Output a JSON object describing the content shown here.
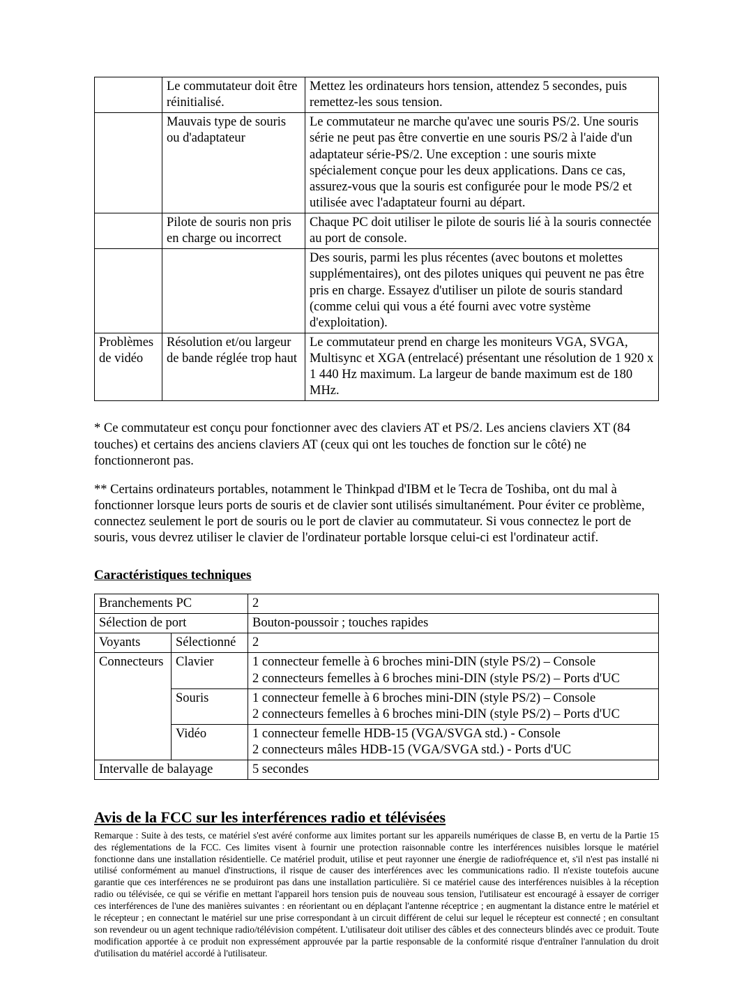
{
  "table1": {
    "rows": [
      {
        "c1": "",
        "c2": "Le commutateur doit être réinitialisé.",
        "c3": "Mettez les ordinateurs hors tension, attendez 5 secondes, puis remettez-les sous tension."
      },
      {
        "c1": "",
        "c2": "Mauvais type de souris ou d'adaptateur",
        "c3": "Le commutateur ne marche qu'avec une souris PS/2. Une souris série ne peut pas être convertie en une souris PS/2 à l'aide d'un adaptateur série-PS/2. Une exception : une souris mixte spécialement conçue pour les deux applications. Dans ce cas, assurez-vous que la souris est configurée pour le mode PS/2 et utilisée avec l'adaptateur fourni au départ."
      },
      {
        "c1": "",
        "c2": "Pilote de souris non pris en charge ou incorrect",
        "c3": "Chaque PC doit utiliser le pilote de souris lié à la souris connectée au port de console."
      },
      {
        "c1": "",
        "c2": "",
        "c3": "Des souris, parmi les plus récentes (avec boutons et molettes supplémentaires), ont des pilotes uniques qui peuvent ne pas être pris en charge. Essayez d'utiliser un pilote de souris standard (comme celui qui vous a été fourni avec votre système d'exploitation)."
      },
      {
        "c1": "Problèmes de vidéo",
        "c2": "Résolution et/ou largeur de bande réglée trop haut",
        "c3": "Le commutateur prend en charge les moniteurs VGA, SVGA, Multisync et XGA (entrelacé) présentant une résolution de 1 920 x 1 440 Hz maximum. La largeur de bande maximum est de 180 MHz."
      }
    ]
  },
  "notes": {
    "p1": "* Ce commutateur est conçu pour fonctionner avec des claviers AT et PS/2. Les anciens claviers XT (84 touches) et certains des anciens claviers AT (ceux qui ont les touches de fonction sur le côté) ne fonctionneront pas.",
    "p2": "** Certains ordinateurs portables, notamment le Thinkpad d'IBM et le Tecra de Toshiba, ont du mal à fonctionner lorsque leurs ports de souris et de clavier sont utilisés simultanément. Pour éviter ce problème, connectez seulement le port de souris ou le port de clavier au commutateur. Si vous connectez le port de souris, vous devrez utiliser le clavier de l'ordinateur portable lorsque celui-ci est l'ordinateur actif."
  },
  "specs_heading": "Caractéristiques techniques",
  "specs": {
    "r1": {
      "a": "Branchements PC",
      "b": "2"
    },
    "r2": {
      "a": "Sélection de port",
      "b": "Bouton-poussoir ; touches rapides"
    },
    "r3": {
      "a": "Voyants",
      "a2": "Sélectionné",
      "b": "2"
    },
    "r4": {
      "a": "Connecteurs",
      "a2": "Clavier",
      "b": "1 connecteur femelle à 6 broches mini-DIN (style PS/2) – Console\n2 connecteurs femelles à 6 broches mini-DIN (style PS/2) – Ports d'UC"
    },
    "r5": {
      "a2": "Souris",
      "b": "1 connecteur femelle à 6 broches mini-DIN (style PS/2) – Console\n2 connecteurs femelles à 6 broches mini-DIN (style PS/2) – Ports d'UC"
    },
    "r6": {
      "a2": "Vidéo",
      "b": "1 connecteur femelle HDB-15 (VGA/SVGA std.) - Console\n2 connecteurs mâles HDB-15 (VGA/SVGA std.) - Ports d'UC"
    },
    "r7": {
      "a": "Intervalle de balayage",
      "b": "5 secondes"
    }
  },
  "fcc_heading": "Avis de la FCC sur les interférences radio et télévisées",
  "fcc_body": "Remarque : Suite à des tests, ce matériel s'est avéré conforme aux limites portant sur les appareils numériques de classe B, en vertu de la Partie 15 des réglementations de la FCC. Ces limites visent à fournir une protection raisonnable contre les interférences nuisibles lorsque le matériel fonctionne dans une installation résidentielle. Ce matériel produit, utilise et peut rayonner une énergie de radiofréquence et, s'il n'est pas installé ni utilisé conformément au manuel d'instructions, il risque de causer des interférences avec les communications radio. Il n'existe toutefois aucune garantie que ces interférences ne se produiront pas dans une installation particulière. Si ce matériel cause des interférences nuisibles à la réception radio ou télévisée, ce qui se vérifie en mettant l'appareil hors tension puis de nouveau sous tension, l'utilisateur est encouragé à essayer de corriger ces interférences de l'une des manières suivantes : en réorientant ou en déplaçant l'antenne réceptrice ; en augmentant la distance entre le matériel et le récepteur ; en connectant le matériel sur une prise correspondant à un circuit différent de celui sur lequel le récepteur est connecté ; en consultant son revendeur ou un agent technique radio/télévision compétent. L'utilisateur doit utiliser des câbles et des connecteurs blindés avec ce produit. Toute modification apportée à ce produit non expressément approuvée par la partie responsable de la conformité risque d'entraîner l'annulation du droit d'utilisation du matériel accordé à l'utilisateur."
}
